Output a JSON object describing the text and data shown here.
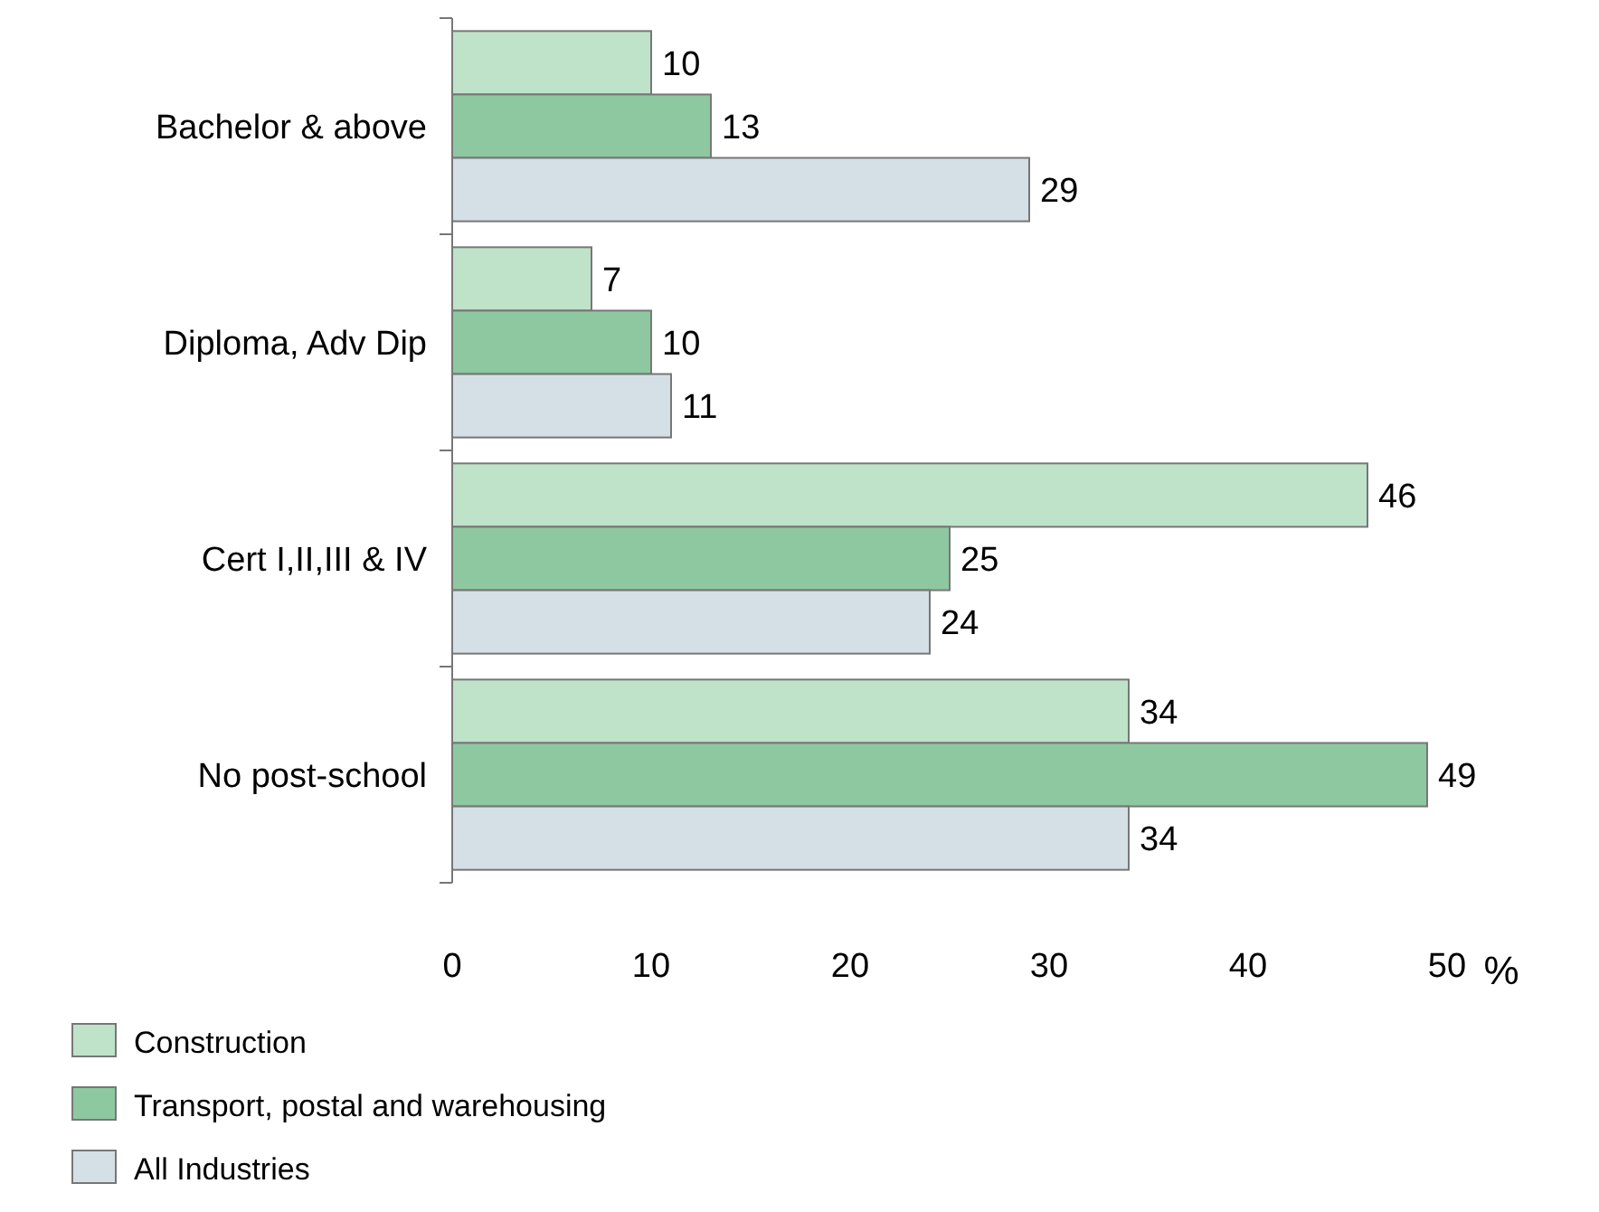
{
  "chart_data": {
    "type": "bar",
    "orientation": "horizontal",
    "categories": [
      "Bachelor & above",
      "Diploma, Adv Dip",
      "Cert I,II,III & IV",
      "No post-school"
    ],
    "series": [
      {
        "name": "Construction",
        "color": "#bfe3c9",
        "values": [
          10,
          7,
          46,
          34
        ]
      },
      {
        "name": "Transport, postal and warehousing",
        "color": "#8dc8a1",
        "values": [
          13,
          10,
          25,
          49
        ]
      },
      {
        "name": "All Industries",
        "color": "#d4e0e6",
        "values": [
          29,
          11,
          24,
          34
        ]
      }
    ],
    "xlabel": "%",
    "xlim": [
      0,
      50
    ],
    "xticks": [
      0,
      10,
      20,
      30,
      40,
      50
    ],
    "data_labels": true,
    "legend": "bottom left",
    "grid": false
  }
}
